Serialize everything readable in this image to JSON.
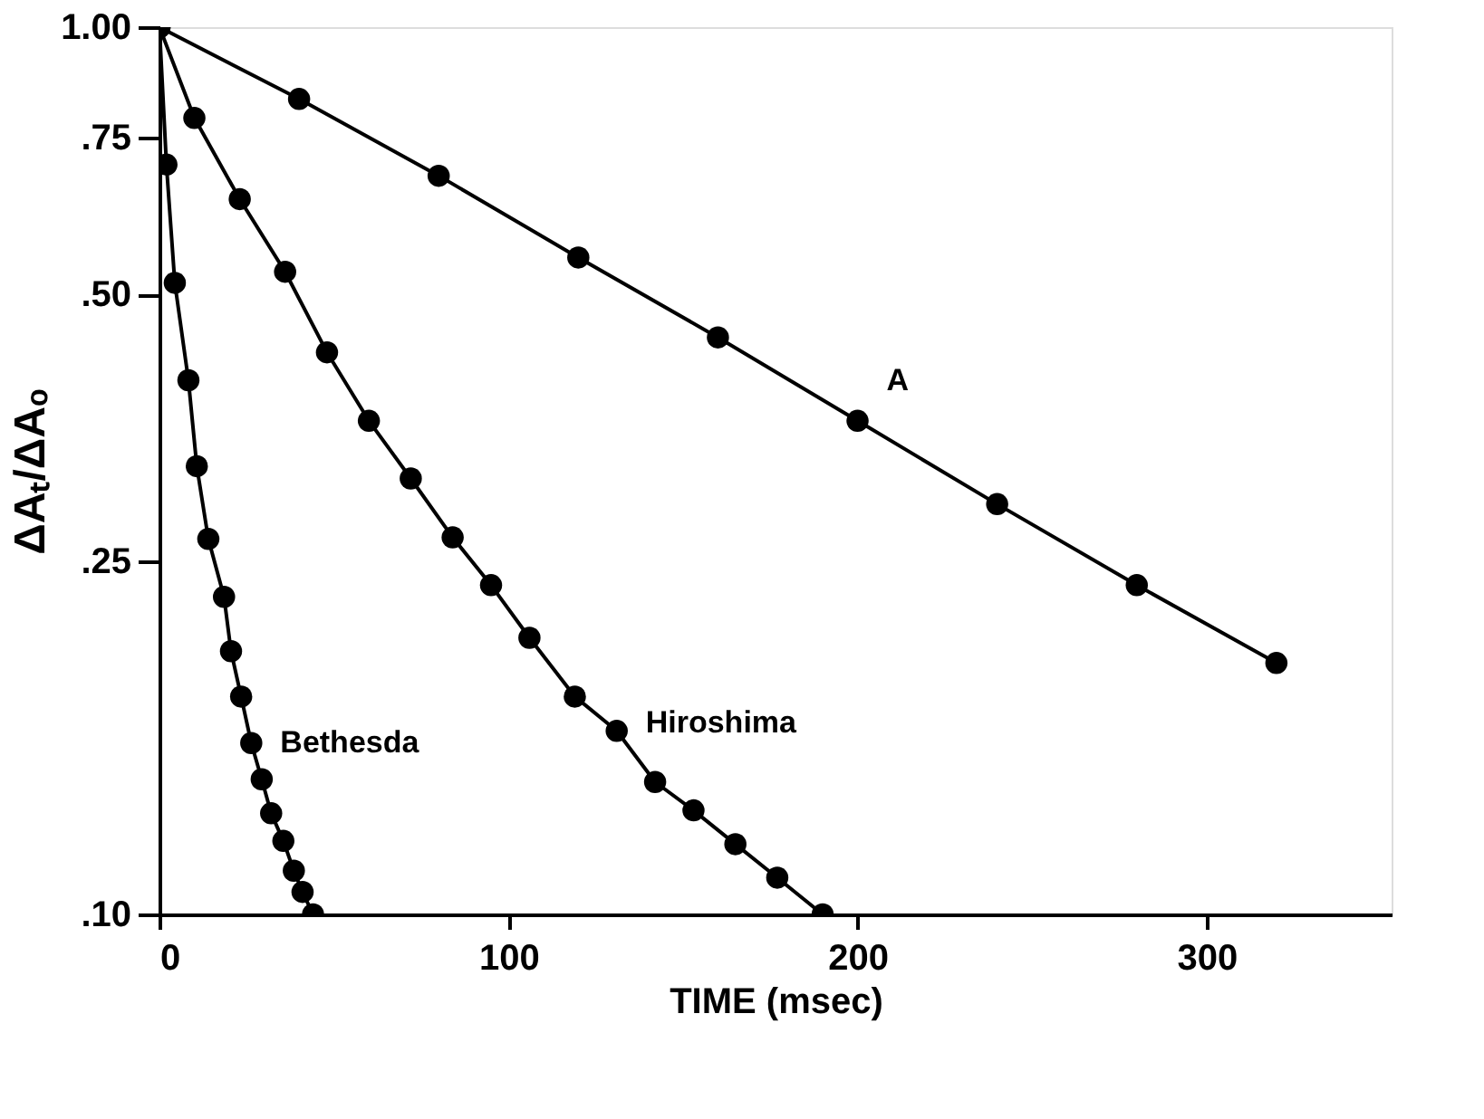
{
  "chart_data": {
    "type": "line",
    "xlabel": "TIME (msec)",
    "ylabel": "ΔAₜ/ΔAₒ",
    "log": "y",
    "xlim": [
      0,
      353
    ],
    "ylim": [
      0.1,
      1
    ],
    "xticks": [
      0,
      100,
      200,
      300
    ],
    "yticks": [
      {
        "value": 1,
        "label": "1.00"
      },
      {
        "value": 0.75,
        "label": ".75"
      },
      {
        "value": 0.5,
        "label": ".50"
      },
      {
        "value": 0.25,
        "label": ".25"
      },
      {
        "value": 0.1,
        "label": ".10"
      }
    ],
    "grid": false,
    "marker": "circle",
    "line_style": "solid",
    "series": [
      {
        "name": "A",
        "color": "#000000",
        "x": [
          0,
          40,
          80,
          120,
          160,
          200,
          240,
          280,
          320
        ],
        "values": [
          1,
          0.83,
          0.68,
          0.55,
          0.447,
          0.36,
          0.29,
          0.235,
          0.192
        ]
      },
      {
        "name": "Hiroshima",
        "color": "#000000",
        "x": [
          0,
          10,
          23,
          36,
          48,
          60,
          72,
          84,
          95,
          106,
          119,
          131,
          142,
          153,
          165,
          177,
          190
        ],
        "values": [
          1,
          0.79,
          0.64,
          0.53,
          0.43,
          0.36,
          0.31,
          0.266,
          0.235,
          0.205,
          0.176,
          0.161,
          0.141,
          0.131,
          0.12,
          0.11,
          0.1
        ]
      },
      {
        "name": "Bethesda",
        "color": "#000000",
        "x": [
          0,
          2,
          4.4,
          8.3,
          10.7,
          14,
          18.5,
          20.5,
          23.4,
          26.3,
          29.3,
          32,
          35.5,
          38.5,
          41,
          44
        ],
        "values": [
          1,
          0.7,
          0.515,
          0.4,
          0.32,
          0.265,
          0.228,
          0.198,
          0.176,
          0.156,
          0.142,
          0.13,
          0.121,
          0.112,
          0.106,
          0.1
        ]
      }
    ]
  }
}
